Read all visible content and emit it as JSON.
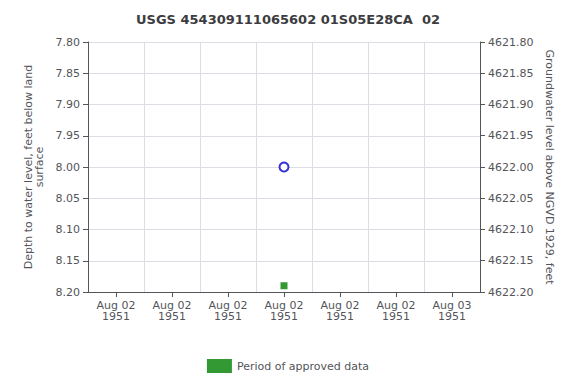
{
  "chart_data": {
    "type": "scatter",
    "title": "USGS 454309111065602 01S05E28CA  02",
    "ylabel": "Depth to water level, feet below land\nsurface",
    "y2label": "Groundwater level above NGVD 1929, feet",
    "categories": [
      "Aug 02\n1951",
      "Aug 02\n1951",
      "Aug 02\n1951",
      "Aug 02\n1951",
      "Aug 02\n1951",
      "Aug 02\n1951",
      "Aug 03\n1951"
    ],
    "series": [
      {
        "color": "#0000cc",
        "marker": "open circle",
        "values": [
          null,
          null,
          null,
          8.0,
          null,
          null,
          null
        ]
      },
      {
        "name": "Period of approved data",
        "color": "#008000",
        "marker": "square",
        "values": [
          null,
          null,
          null,
          8.19,
          null,
          null,
          null
        ]
      }
    ],
    "ylim": [
      8.2,
      7.8
    ],
    "yticks": [
      {
        "value": 7.8,
        "label": "7.80"
      },
      {
        "value": 7.85,
        "label": "7.85"
      },
      {
        "value": 7.9,
        "label": "7.90"
      },
      {
        "value": 7.95,
        "label": "7.95"
      },
      {
        "value": 8.0,
        "label": "8.00"
      },
      {
        "value": 8.05,
        "label": "8.05"
      },
      {
        "value": 8.1,
        "label": "8.10"
      },
      {
        "value": 8.15,
        "label": "8.15"
      },
      {
        "value": 8.2,
        "label": "8.20"
      }
    ],
    "y2lim": [
      4622.2,
      4621.8
    ],
    "y2ticks": [
      {
        "value": 4621.8,
        "label": "4621.80"
      },
      {
        "value": 4621.85,
        "label": "4621.85"
      },
      {
        "value": 4621.9,
        "label": "4621.90"
      },
      {
        "value": 4621.95,
        "label": "4621.95"
      },
      {
        "value": 4622.0,
        "label": "4622.00"
      },
      {
        "value": 4622.05,
        "label": "4622.05"
      },
      {
        "value": 4622.1,
        "label": "4622.10"
      },
      {
        "value": 4622.15,
        "label": "4622.15"
      },
      {
        "value": 4622.2,
        "label": "4622.20"
      }
    ],
    "grid": true,
    "legend": "bottom"
  }
}
